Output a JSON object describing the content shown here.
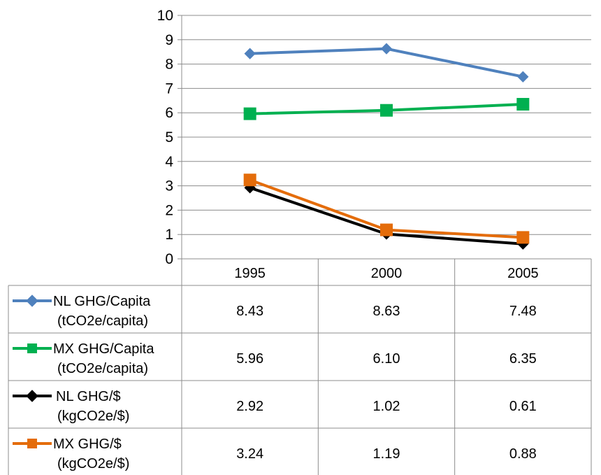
{
  "chart_data": {
    "type": "line",
    "categories": [
      "1995",
      "2000",
      "2005"
    ],
    "ylim": [
      0,
      10
    ],
    "yticks": [
      0,
      1,
      2,
      3,
      4,
      5,
      6,
      7,
      8,
      9,
      10
    ],
    "grid": true,
    "legend_placement": "data-table-left",
    "series": [
      {
        "name": "NL GHG/Capita",
        "unit": "(tCO2e/capita)",
        "marker": "diamond",
        "color": "#4F81BD",
        "values": [
          8.43,
          8.63,
          7.48
        ],
        "labels": [
          "8.43",
          "8.63",
          "7.48"
        ]
      },
      {
        "name": "MX GHG/Capita",
        "unit": "(tCO2e/capita)",
        "marker": "square",
        "color": "#00B050",
        "values": [
          5.96,
          6.1,
          6.35
        ],
        "labels": [
          "5.96",
          "6.10",
          "6.35"
        ]
      },
      {
        "name": "NL GHG/$",
        "unit": "(kgCO2e/$)",
        "marker": "diamond",
        "color": "#000000",
        "values": [
          2.92,
          1.02,
          0.61
        ],
        "labels": [
          "2.92",
          "1.02",
          "0.61"
        ]
      },
      {
        "name": "MX GHG/$",
        "unit": "(kgCO2e/$)",
        "marker": "square",
        "color": "#E46C0A",
        "values": [
          3.24,
          1.19,
          0.88
        ],
        "labels": [
          "3.24",
          "1.19",
          "0.88"
        ]
      }
    ]
  }
}
